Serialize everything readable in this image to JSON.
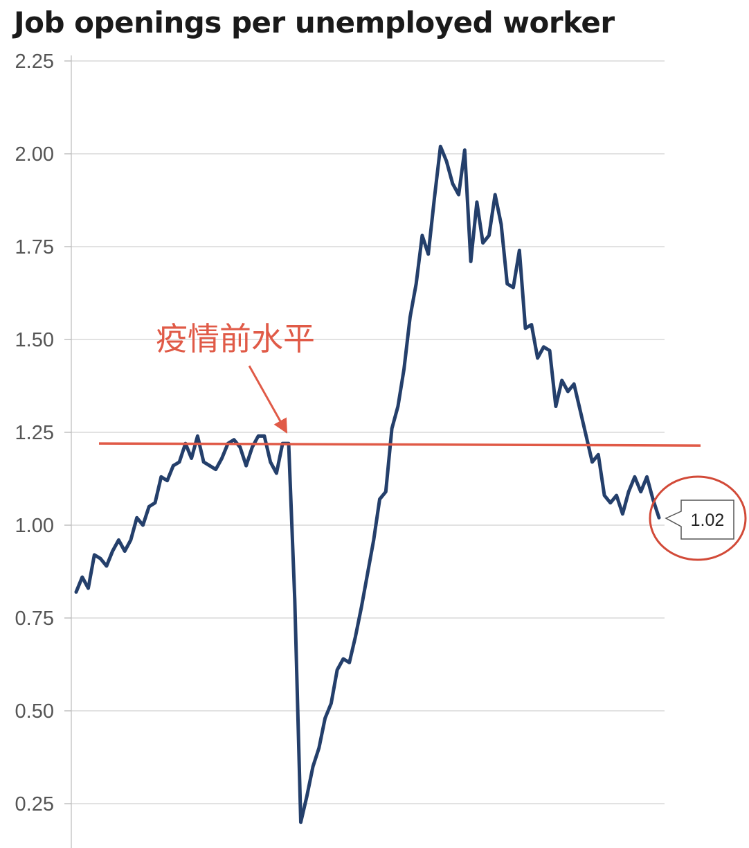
{
  "chart_data": {
    "type": "line",
    "title": "Job openings per unemployed worker",
    "xlabel": "",
    "ylabel": "",
    "ylim": [
      0.12,
      2.25
    ],
    "yticks": [
      "2.25",
      "2.00",
      "1.75",
      "1.50",
      "1.25",
      "1.00",
      "0.75",
      "0.50",
      "0.25"
    ],
    "grid": true,
    "legend": "none",
    "series": [
      {
        "color": "#243f6b",
        "values": [
          0.82,
          0.86,
          0.83,
          0.92,
          0.91,
          0.89,
          0.93,
          0.96,
          0.93,
          0.96,
          1.02,
          1.0,
          1.05,
          1.06,
          1.13,
          1.12,
          1.16,
          1.17,
          1.22,
          1.18,
          1.24,
          1.17,
          1.16,
          1.15,
          1.18,
          1.22,
          1.23,
          1.21,
          1.16,
          1.21,
          1.24,
          1.24,
          1.17,
          1.14,
          1.22,
          1.22,
          0.8,
          0.2,
          0.27,
          0.35,
          0.4,
          0.48,
          0.52,
          0.61,
          0.64,
          0.63,
          0.7,
          0.78,
          0.87,
          0.96,
          1.07,
          1.09,
          1.26,
          1.32,
          1.42,
          1.56,
          1.65,
          1.78,
          1.73,
          1.88,
          2.02,
          1.98,
          1.92,
          1.89,
          2.01,
          1.71,
          1.87,
          1.76,
          1.78,
          1.89,
          1.81,
          1.65,
          1.64,
          1.74,
          1.53,
          1.54,
          1.45,
          1.48,
          1.47,
          1.32,
          1.39,
          1.36,
          1.38,
          1.31,
          1.24,
          1.17,
          1.19,
          1.08,
          1.06,
          1.08,
          1.03,
          1.09,
          1.13,
          1.09,
          1.13,
          1.07,
          1.02
        ]
      }
    ],
    "reference_line": {
      "value": 1.22,
      "color": "#e05a47"
    },
    "annotation": {
      "text": "疫情前水平",
      "color": "#e05a47"
    },
    "last_value_label": "1.02"
  }
}
